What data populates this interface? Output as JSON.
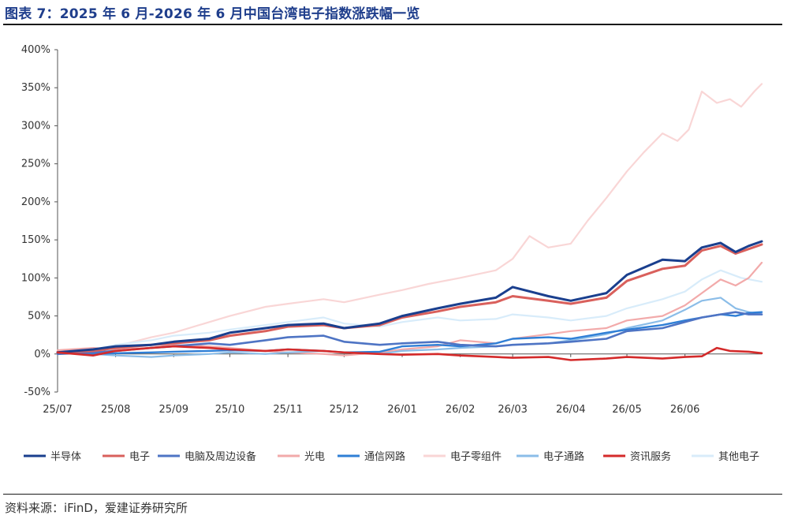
{
  "figure": {
    "title": "图表 7：2025 年 6 月-2026 年 6 月中国台湾电子指数涨跌幅一览",
    "source": "资料来源：iFinD，爱建证券研究所"
  },
  "chart_data": {
    "type": "line",
    "y_unit": "%",
    "ylim": [
      -50,
      400
    ],
    "y_ticks": [
      -50,
      0,
      50,
      100,
      150,
      200,
      250,
      300,
      350,
      400
    ],
    "y_tick_labels": [
      "-50%",
      "0%",
      "50%",
      "100%",
      "150%",
      "200%",
      "250%",
      "300%",
      "350%",
      "400%"
    ],
    "x_range": [
      "2025-07-01",
      "2026-07-12"
    ],
    "x_ticks": [
      {
        "date": "2025-07-01",
        "label": "25/07"
      },
      {
        "date": "2025-08-01",
        "label": "25/08"
      },
      {
        "date": "2025-09-01",
        "label": "25/09"
      },
      {
        "date": "2025-10-01",
        "label": "25/10"
      },
      {
        "date": "2025-11-01",
        "label": "25/11"
      },
      {
        "date": "2025-12-01",
        "label": "25/12"
      },
      {
        "date": "2026-01-01",
        "label": "26/01"
      },
      {
        "date": "2026-02-01",
        "label": "26/02"
      },
      {
        "date": "2026-03-01",
        "label": "26/03"
      },
      {
        "date": "2026-04-01",
        "label": "26/04"
      },
      {
        "date": "2026-05-01",
        "label": "26/05"
      },
      {
        "date": "2026-06-01",
        "label": "26/06"
      }
    ],
    "grid": false,
    "legend_position": "bottom",
    "series": [
      {
        "name": "电子零组件",
        "color": "#f9d6d6",
        "values": [
          [
            "2025-07-01",
            0
          ],
          [
            "2025-07-20",
            6
          ],
          [
            "2025-08-01",
            10
          ],
          [
            "2025-08-20",
            22
          ],
          [
            "2025-09-01",
            28
          ],
          [
            "2025-09-20",
            42
          ],
          [
            "2025-10-01",
            50
          ],
          [
            "2025-10-20",
            62
          ],
          [
            "2025-11-01",
            66
          ],
          [
            "2025-11-20",
            72
          ],
          [
            "2025-12-01",
            68
          ],
          [
            "2025-12-20",
            78
          ],
          [
            "2026-01-01",
            84
          ],
          [
            "2026-01-15",
            92
          ],
          [
            "2026-02-01",
            100
          ],
          [
            "2026-02-20",
            110
          ],
          [
            "2026-03-01",
            125
          ],
          [
            "2026-03-10",
            155
          ],
          [
            "2026-03-20",
            140
          ],
          [
            "2026-04-01",
            145
          ],
          [
            "2026-04-10",
            175
          ],
          [
            "2026-04-20",
            205
          ],
          [
            "2026-05-01",
            240
          ],
          [
            "2026-05-10",
            265
          ],
          [
            "2026-05-20",
            290
          ],
          [
            "2026-05-28",
            280
          ],
          [
            "2026-06-03",
            295
          ],
          [
            "2026-06-10",
            345
          ],
          [
            "2026-06-18",
            330
          ],
          [
            "2026-06-25",
            335
          ],
          [
            "2026-07-01",
            325
          ],
          [
            "2026-07-08",
            345
          ],
          [
            "2026-07-12",
            355
          ]
        ]
      },
      {
        "name": "其他电子",
        "color": "#d8ecfa",
        "values": [
          [
            "2025-07-01",
            2
          ],
          [
            "2025-07-20",
            6
          ],
          [
            "2025-08-01",
            12
          ],
          [
            "2025-08-20",
            18
          ],
          [
            "2025-09-01",
            24
          ],
          [
            "2025-09-20",
            28
          ],
          [
            "2025-10-01",
            32
          ],
          [
            "2025-10-20",
            38
          ],
          [
            "2025-11-01",
            42
          ],
          [
            "2025-11-20",
            48
          ],
          [
            "2025-12-01",
            40
          ],
          [
            "2025-12-20",
            36
          ],
          [
            "2026-01-01",
            42
          ],
          [
            "2026-01-20",
            48
          ],
          [
            "2026-02-01",
            44
          ],
          [
            "2026-02-20",
            46
          ],
          [
            "2026-03-01",
            52
          ],
          [
            "2026-03-20",
            48
          ],
          [
            "2026-04-01",
            44
          ],
          [
            "2026-04-20",
            50
          ],
          [
            "2026-05-01",
            60
          ],
          [
            "2026-05-20",
            72
          ],
          [
            "2026-06-01",
            82
          ],
          [
            "2026-06-10",
            98
          ],
          [
            "2026-06-20",
            110
          ],
          [
            "2026-07-01",
            100
          ],
          [
            "2026-07-12",
            95
          ]
        ]
      },
      {
        "name": "光电",
        "color": "#f2aaaa",
        "values": [
          [
            "2025-07-01",
            5
          ],
          [
            "2025-07-20",
            8
          ],
          [
            "2025-08-01",
            6
          ],
          [
            "2025-08-20",
            8
          ],
          [
            "2025-09-01",
            12
          ],
          [
            "2025-09-20",
            10
          ],
          [
            "2025-10-01",
            8
          ],
          [
            "2025-10-20",
            4
          ],
          [
            "2025-11-01",
            2
          ],
          [
            "2025-11-20",
            0
          ],
          [
            "2025-12-01",
            -2
          ],
          [
            "2025-12-20",
            2
          ],
          [
            "2026-01-01",
            6
          ],
          [
            "2026-01-20",
            10
          ],
          [
            "2026-02-01",
            18
          ],
          [
            "2026-02-20",
            14
          ],
          [
            "2026-03-01",
            20
          ],
          [
            "2026-03-20",
            26
          ],
          [
            "2026-04-01",
            30
          ],
          [
            "2026-04-20",
            34
          ],
          [
            "2026-05-01",
            44
          ],
          [
            "2026-05-20",
            50
          ],
          [
            "2026-06-01",
            64
          ],
          [
            "2026-06-10",
            80
          ],
          [
            "2026-06-20",
            98
          ],
          [
            "2026-06-28",
            90
          ],
          [
            "2026-07-05",
            100
          ],
          [
            "2026-07-12",
            120
          ]
        ]
      },
      {
        "name": "电子通路",
        "color": "#8bbde8",
        "values": [
          [
            "2025-07-01",
            2
          ],
          [
            "2025-07-20",
            0
          ],
          [
            "2025-08-01",
            -2
          ],
          [
            "2025-08-20",
            -4
          ],
          [
            "2025-09-01",
            -2
          ],
          [
            "2025-09-20",
            0
          ],
          [
            "2025-10-01",
            2
          ],
          [
            "2025-10-20",
            0
          ],
          [
            "2025-11-01",
            2
          ],
          [
            "2025-11-20",
            4
          ],
          [
            "2025-12-01",
            2
          ],
          [
            "2025-12-20",
            0
          ],
          [
            "2026-01-01",
            4
          ],
          [
            "2026-01-20",
            6
          ],
          [
            "2026-02-01",
            8
          ],
          [
            "2026-02-20",
            10
          ],
          [
            "2026-03-01",
            12
          ],
          [
            "2026-03-20",
            14
          ],
          [
            "2026-04-01",
            18
          ],
          [
            "2026-04-20",
            26
          ],
          [
            "2026-05-01",
            34
          ],
          [
            "2026-05-20",
            44
          ],
          [
            "2026-06-01",
            58
          ],
          [
            "2026-06-10",
            70
          ],
          [
            "2026-06-20",
            74
          ],
          [
            "2026-06-28",
            60
          ],
          [
            "2026-07-05",
            55
          ],
          [
            "2026-07-12",
            52
          ]
        ]
      },
      {
        "name": "通信网路",
        "color": "#2f7fd6",
        "values": [
          [
            "2025-07-01",
            2
          ],
          [
            "2025-07-20",
            0
          ],
          [
            "2025-08-01",
            1
          ],
          [
            "2025-08-20",
            2
          ],
          [
            "2025-09-01",
            3
          ],
          [
            "2025-09-20",
            4
          ],
          [
            "2025-10-01",
            5
          ],
          [
            "2025-10-20",
            4
          ],
          [
            "2025-11-01",
            6
          ],
          [
            "2025-11-20",
            4
          ],
          [
            "2025-12-01",
            2
          ],
          [
            "2025-12-20",
            3
          ],
          [
            "2026-01-01",
            10
          ],
          [
            "2026-01-20",
            12
          ],
          [
            "2026-02-01",
            10
          ],
          [
            "2026-02-20",
            14
          ],
          [
            "2026-03-01",
            20
          ],
          [
            "2026-03-20",
            22
          ],
          [
            "2026-04-01",
            20
          ],
          [
            "2026-04-20",
            28
          ],
          [
            "2026-05-01",
            32
          ],
          [
            "2026-05-20",
            38
          ],
          [
            "2026-06-01",
            44
          ],
          [
            "2026-06-10",
            48
          ],
          [
            "2026-06-20",
            52
          ],
          [
            "2026-06-28",
            50
          ],
          [
            "2026-07-05",
            54
          ],
          [
            "2026-07-12",
            55
          ]
        ]
      },
      {
        "name": "电脑及周边设备",
        "color": "#4e74c4",
        "values": [
          [
            "2025-07-01",
            0
          ],
          [
            "2025-07-20",
            2
          ],
          [
            "2025-08-01",
            4
          ],
          [
            "2025-08-20",
            8
          ],
          [
            "2025-09-01",
            10
          ],
          [
            "2025-09-20",
            14
          ],
          [
            "2025-10-01",
            12
          ],
          [
            "2025-10-20",
            18
          ],
          [
            "2025-11-01",
            22
          ],
          [
            "2025-11-20",
            24
          ],
          [
            "2025-12-01",
            16
          ],
          [
            "2025-12-20",
            12
          ],
          [
            "2026-01-01",
            14
          ],
          [
            "2026-01-20",
            16
          ],
          [
            "2026-02-01",
            12
          ],
          [
            "2026-02-20",
            10
          ],
          [
            "2026-03-01",
            12
          ],
          [
            "2026-03-20",
            14
          ],
          [
            "2026-04-01",
            16
          ],
          [
            "2026-04-20",
            20
          ],
          [
            "2026-05-01",
            30
          ],
          [
            "2026-05-20",
            34
          ],
          [
            "2026-06-01",
            42
          ],
          [
            "2026-06-10",
            48
          ],
          [
            "2026-06-20",
            52
          ],
          [
            "2026-06-28",
            55
          ],
          [
            "2026-07-05",
            52
          ],
          [
            "2026-07-12",
            52
          ]
        ]
      },
      {
        "name": "电子",
        "color": "#d9605c",
        "values": [
          [
            "2025-07-01",
            2
          ],
          [
            "2025-07-20",
            4
          ],
          [
            "2025-08-01",
            8
          ],
          [
            "2025-08-20",
            12
          ],
          [
            "2025-09-01",
            14
          ],
          [
            "2025-09-20",
            18
          ],
          [
            "2025-10-01",
            24
          ],
          [
            "2025-10-20",
            30
          ],
          [
            "2025-11-01",
            36
          ],
          [
            "2025-11-20",
            38
          ],
          [
            "2025-12-01",
            34
          ],
          [
            "2025-12-20",
            38
          ],
          [
            "2026-01-01",
            48
          ],
          [
            "2026-01-20",
            56
          ],
          [
            "2026-02-01",
            62
          ],
          [
            "2026-02-20",
            68
          ],
          [
            "2026-03-01",
            76
          ],
          [
            "2026-03-20",
            70
          ],
          [
            "2026-04-01",
            66
          ],
          [
            "2026-04-20",
            74
          ],
          [
            "2026-05-01",
            96
          ],
          [
            "2026-05-20",
            112
          ],
          [
            "2026-06-01",
            116
          ],
          [
            "2026-06-10",
            136
          ],
          [
            "2026-06-20",
            142
          ],
          [
            "2026-06-28",
            132
          ],
          [
            "2026-07-05",
            138
          ],
          [
            "2026-07-12",
            144
          ]
        ]
      },
      {
        "name": "半导体",
        "color": "#1a3f8e",
        "values": [
          [
            "2025-07-01",
            2
          ],
          [
            "2025-07-20",
            6
          ],
          [
            "2025-08-01",
            10
          ],
          [
            "2025-08-20",
            12
          ],
          [
            "2025-09-01",
            16
          ],
          [
            "2025-09-20",
            20
          ],
          [
            "2025-10-01",
            28
          ],
          [
            "2025-10-20",
            34
          ],
          [
            "2025-11-01",
            38
          ],
          [
            "2025-11-20",
            40
          ],
          [
            "2025-12-01",
            34
          ],
          [
            "2025-12-20",
            40
          ],
          [
            "2026-01-01",
            50
          ],
          [
            "2026-01-20",
            60
          ],
          [
            "2026-02-01",
            66
          ],
          [
            "2026-02-20",
            74
          ],
          [
            "2026-03-01",
            88
          ],
          [
            "2026-03-20",
            76
          ],
          [
            "2026-04-01",
            70
          ],
          [
            "2026-04-20",
            80
          ],
          [
            "2026-05-01",
            104
          ],
          [
            "2026-05-20",
            124
          ],
          [
            "2026-06-01",
            122
          ],
          [
            "2026-06-10",
            140
          ],
          [
            "2026-06-20",
            146
          ],
          [
            "2026-06-28",
            134
          ],
          [
            "2026-07-05",
            142
          ],
          [
            "2026-07-12",
            148
          ]
        ]
      },
      {
        "name": "资讯服务",
        "color": "#d42a2a",
        "values": [
          [
            "2025-07-01",
            2
          ],
          [
            "2025-07-20",
            -2
          ],
          [
            "2025-08-01",
            4
          ],
          [
            "2025-08-20",
            8
          ],
          [
            "2025-09-01",
            10
          ],
          [
            "2025-09-20",
            8
          ],
          [
            "2025-10-01",
            6
          ],
          [
            "2025-10-20",
            4
          ],
          [
            "2025-11-01",
            6
          ],
          [
            "2025-11-20",
            4
          ],
          [
            "2025-12-01",
            2
          ],
          [
            "2025-12-20",
            0
          ],
          [
            "2026-01-01",
            -1
          ],
          [
            "2026-01-20",
            0
          ],
          [
            "2026-02-01",
            -2
          ],
          [
            "2026-02-20",
            -4
          ],
          [
            "2026-03-01",
            -5
          ],
          [
            "2026-03-20",
            -4
          ],
          [
            "2026-04-01",
            -8
          ],
          [
            "2026-04-20",
            -6
          ],
          [
            "2026-05-01",
            -4
          ],
          [
            "2026-05-20",
            -6
          ],
          [
            "2026-06-01",
            -4
          ],
          [
            "2026-06-10",
            -3
          ],
          [
            "2026-06-18",
            8
          ],
          [
            "2026-06-25",
            4
          ],
          [
            "2026-07-05",
            3
          ],
          [
            "2026-07-12",
            1
          ]
        ]
      }
    ],
    "legend_order": [
      "半导体",
      "电子",
      "电脑及周边设备",
      "光电",
      "通信网路",
      "电子零组件",
      "电子通路",
      "资讯服务",
      "其他电子"
    ]
  }
}
